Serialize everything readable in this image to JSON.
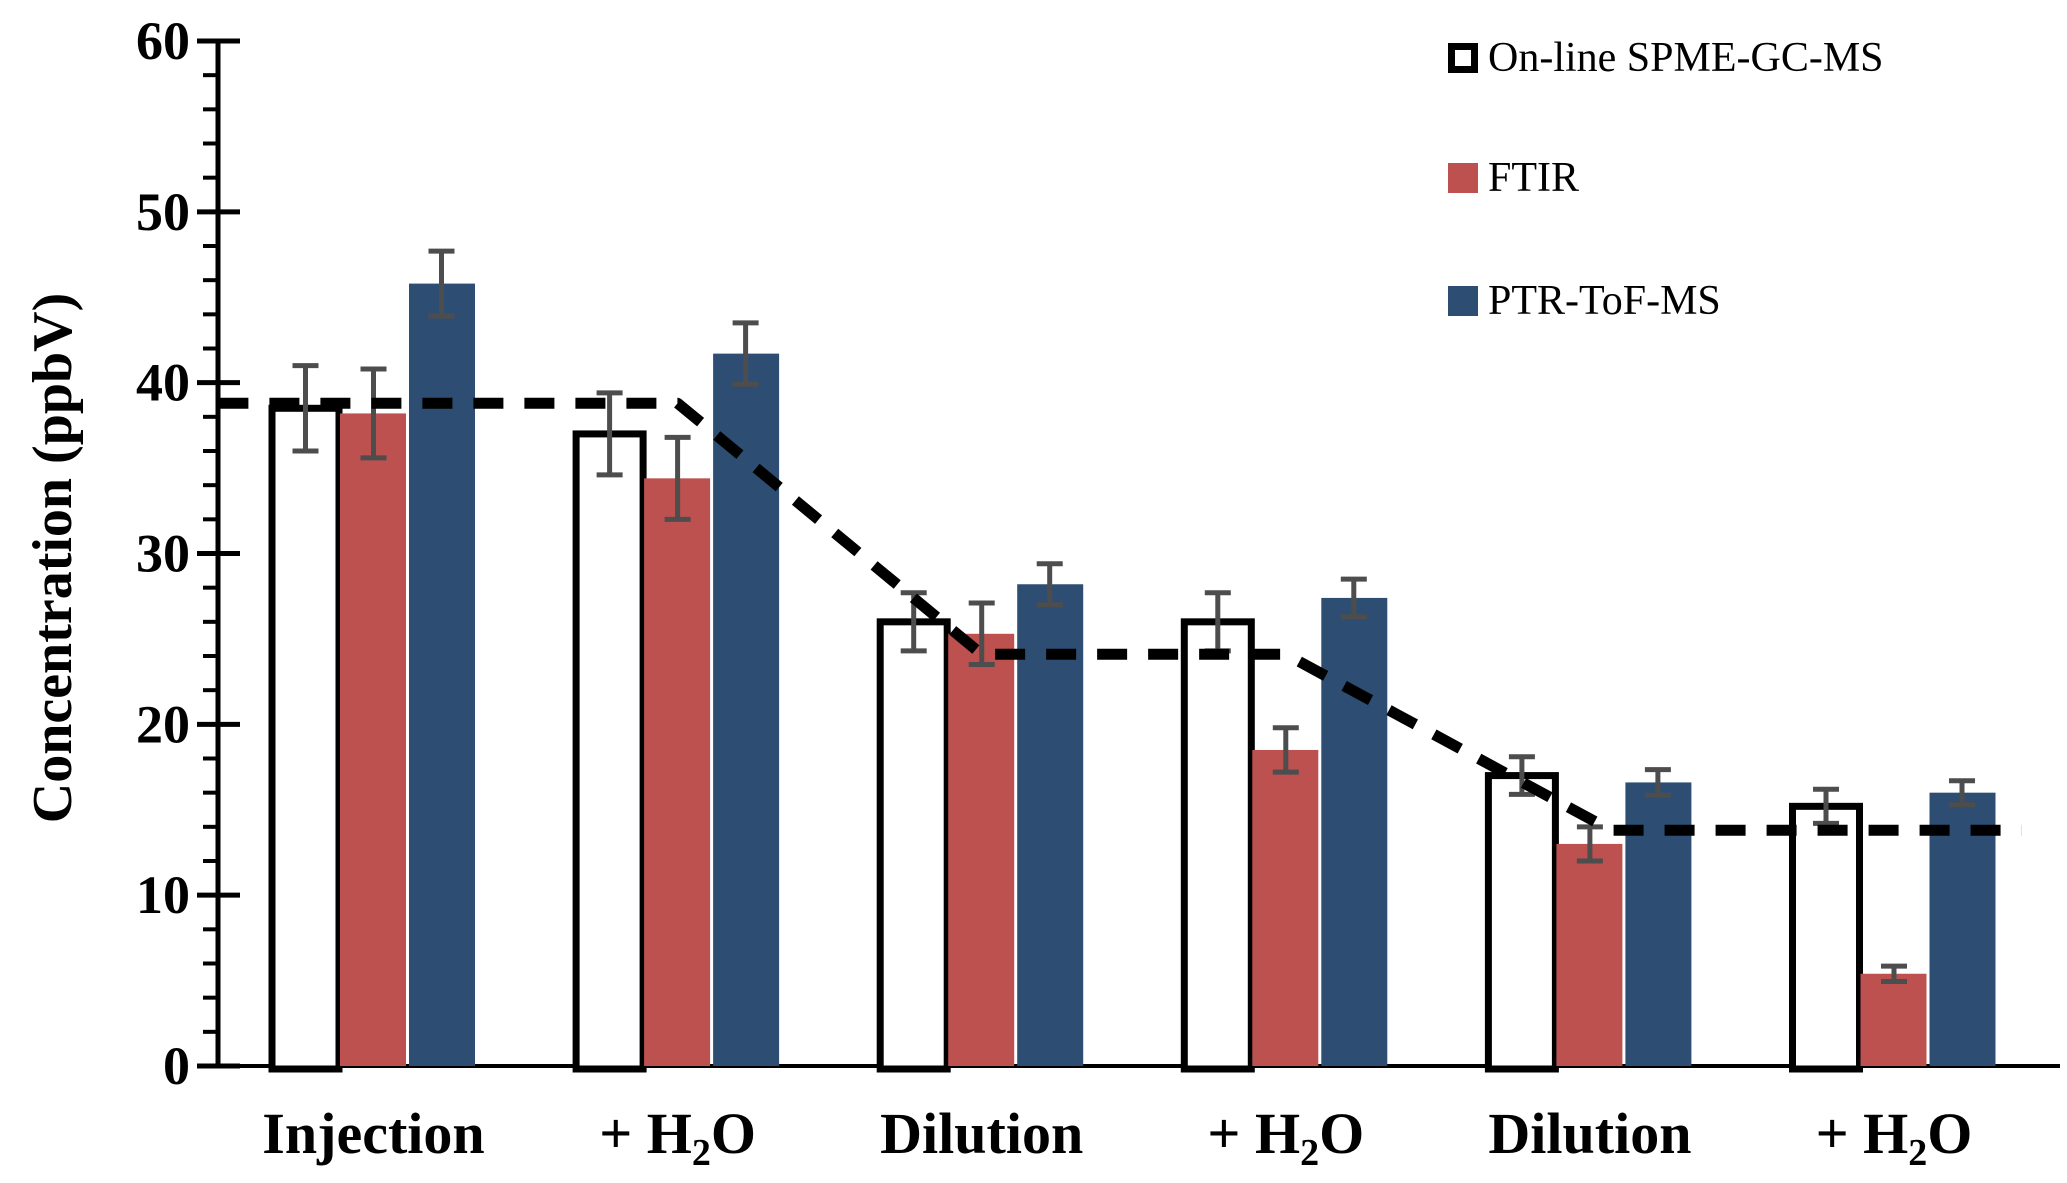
{
  "figure": {
    "background": "#FFFFFF",
    "axis_color": "#000000",
    "text_color": "#000000"
  },
  "chart_data": {
    "type": "bar",
    "title": "",
    "xlabel": "",
    "ylabel": "Concentration (ppbV)",
    "ylim": [
      0,
      60
    ],
    "y_major_step": 10,
    "y_minor_step": 2,
    "grid": "off",
    "legend_position": "top-right",
    "categories": [
      "Injection",
      "+ H₂O",
      "Dilution",
      "+ H₂O",
      "Dilution",
      "+ H₂O"
    ],
    "series": [
      {
        "name": "On-line SPME-GC-MS",
        "fill": "#FFFFFF",
        "stroke": "#000000",
        "values": [
          38.5,
          37.0,
          26.0,
          26.0,
          17.0,
          15.2
        ],
        "errors": [
          2.5,
          2.4,
          1.7,
          1.7,
          1.1,
          1.0
        ]
      },
      {
        "name": "FTIR",
        "fill": "#BC514F",
        "stroke": "none",
        "values": [
          38.2,
          34.4,
          25.3,
          18.5,
          13.0,
          5.4
        ],
        "errors": [
          2.6,
          2.4,
          1.8,
          1.3,
          1.0,
          0.45
        ]
      },
      {
        "name": "PTR-ToF-MS",
        "fill": "#2D4E72",
        "stroke": "none",
        "values": [
          45.8,
          41.7,
          28.2,
          27.4,
          16.6,
          16.0
        ],
        "errors": [
          1.9,
          1.8,
          1.2,
          1.1,
          0.75,
          0.7
        ]
      }
    ],
    "error_bar_color": "#4D4D4D",
    "dashed_guide_line": {
      "color": "#000000",
      "style": "dashed",
      "x_units": "category-index",
      "points": [
        {
          "x": -0.51,
          "v": 38.8
        },
        {
          "x": 1.0,
          "v": 38.8
        },
        {
          "x": 2.0,
          "v": 24.1
        },
        {
          "x": 3.0,
          "v": 24.1
        },
        {
          "x": 4.07,
          "v": 13.8
        },
        {
          "x": 5.42,
          "v": 13.8
        }
      ]
    }
  }
}
